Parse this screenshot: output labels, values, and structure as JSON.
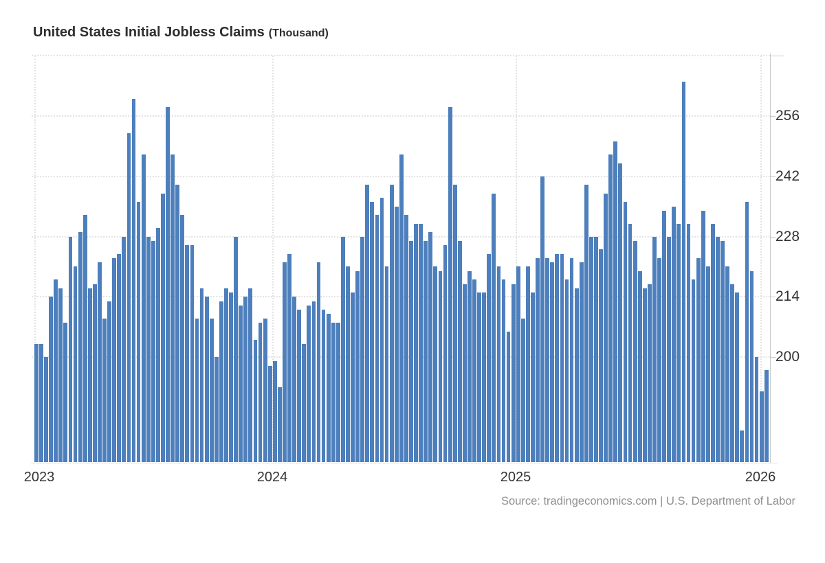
{
  "title": {
    "main": "United States Initial Jobless Claims",
    "unit": "(Thousand)"
  },
  "source": "Source: tradingeconomics.com | U.S. Department of Labor",
  "colors": {
    "bar": "#4d7fbd",
    "grid": "#e3e3e3",
    "axis": "#c9c9c9",
    "label_text": "#333333",
    "title_text": "#2e2e2e",
    "source_text": "#8f8f8f",
    "background": "#ffffff"
  },
  "chart_data": {
    "type": "bar",
    "title": "United States Initial Jobless Claims",
    "unit": "Thousand",
    "frequency": "weekly",
    "grid": "dotted",
    "legend": "none",
    "y_axis_side": "right",
    "ylim": [
      175.8,
      270
    ],
    "y_ticks": [
      256,
      242,
      228,
      214,
      200
    ],
    "x_tick_labels": [
      "2023",
      "2024",
      "2025",
      "2026"
    ],
    "x_range_note": "weekly bars from Jan 2023 to Jan 2026",
    "values": [
      203,
      203,
      200,
      214,
      218,
      216,
      208,
      228,
      221,
      229,
      233,
      216,
      217,
      222,
      209,
      213,
      223,
      224,
      228,
      252,
      260,
      236,
      247,
      228,
      227,
      230,
      238,
      258,
      247,
      240,
      233,
      226,
      226,
      209,
      216,
      214,
      209,
      200,
      213,
      216,
      215,
      228,
      212,
      214,
      216,
      204,
      208,
      209,
      198,
      199,
      193,
      222,
      224,
      214,
      211,
      203,
      212,
      213,
      222,
      211,
      210,
      208,
      208,
      228,
      221,
      215,
      220,
      228,
      240,
      236,
      233,
      237,
      221,
      240,
      235,
      247,
      233,
      227,
      231,
      231,
      227,
      229,
      221,
      220,
      226,
      258,
      240,
      227,
      217,
      220,
      218,
      215,
      215,
      224,
      238,
      221,
      218,
      206,
      217,
      221,
      209,
      221,
      215,
      223,
      242,
      223,
      222,
      224,
      224,
      218,
      223,
      216,
      222,
      240,
      228,
      228,
      225,
      238,
      247,
      250,
      245,
      236,
      231,
      227,
      220,
      216,
      217,
      228,
      223,
      234,
      228,
      235,
      231,
      264,
      231,
      218,
      223,
      234,
      221,
      231,
      228,
      227,
      221,
      217,
      215,
      183,
      236,
      220,
      200,
      192,
      197
    ]
  }
}
